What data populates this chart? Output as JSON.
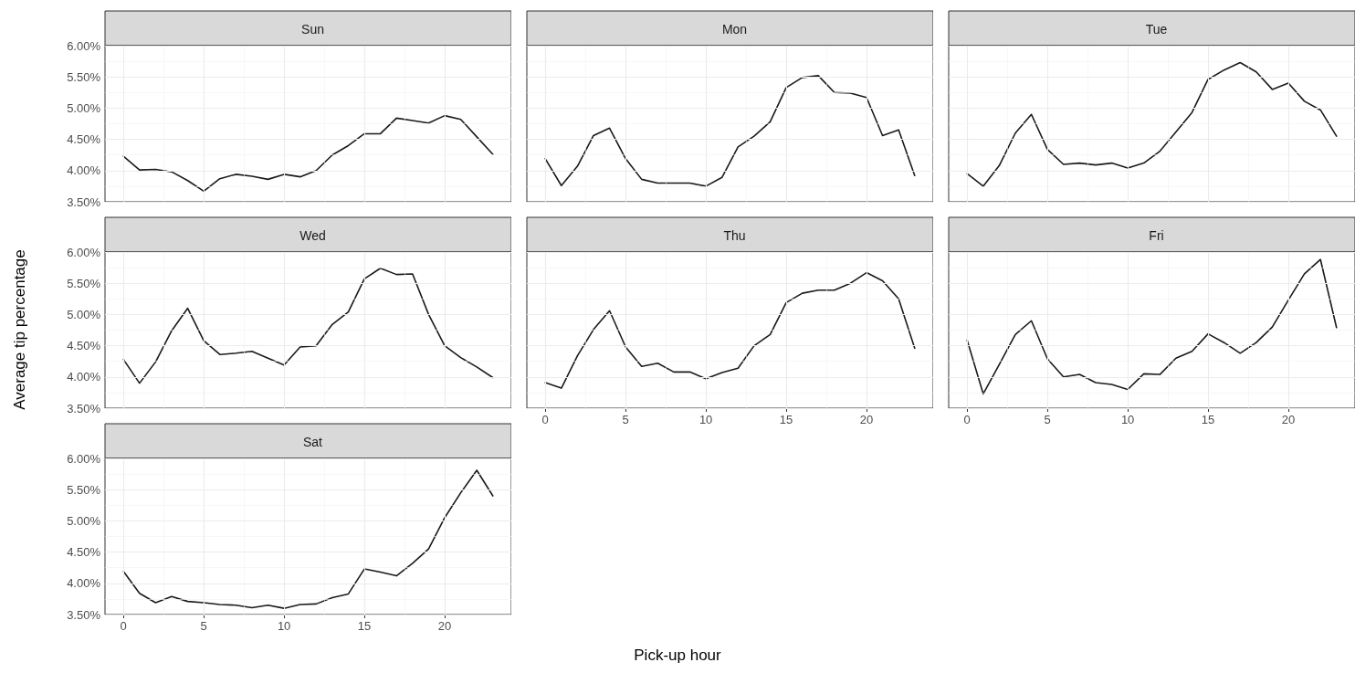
{
  "chart_data": [
    {
      "type": "line",
      "title": "Sun",
      "tick_labels": "y",
      "grid": true,
      "marker": "none",
      "line_style": "solid",
      "xlim": [
        -1.15,
        24.15
      ],
      "xticks": [
        0,
        5,
        10,
        15,
        20
      ],
      "ylim": [
        3.5,
        6.0
      ],
      "yticks": [
        {
          "value": 3.5,
          "label": "3.50%"
        },
        {
          "value": 4.0,
          "label": "4.00%"
        },
        {
          "value": 4.5,
          "label": "4.50%"
        },
        {
          "value": 5.0,
          "label": "5.00%"
        },
        {
          "value": 5.5,
          "label": "5.50%"
        },
        {
          "value": 6.0,
          "label": "6.00%"
        }
      ],
      "x": [
        0,
        1,
        2,
        3,
        4,
        5,
        6,
        7,
        8,
        9,
        10,
        11,
        12,
        13,
        14,
        15,
        16,
        17,
        18,
        19,
        20,
        21,
        22,
        23
      ],
      "series": [
        {
          "color": "#1a1a1a",
          "values": [
            4.23,
            4.01,
            4.02,
            3.98,
            3.84,
            3.67,
            3.87,
            3.94,
            3.91,
            3.86,
            3.94,
            3.9,
            4.0,
            4.25,
            4.4,
            4.59,
            4.59,
            4.84,
            4.8,
            4.76,
            4.88,
            4.82,
            4.54,
            4.26
          ]
        }
      ]
    },
    {
      "type": "line",
      "title": "Mon",
      "tick_labels": false,
      "grid": true,
      "marker": "none",
      "line_style": "solid",
      "xlim": [
        -1.15,
        24.15
      ],
      "xticks": [
        0,
        5,
        10,
        15,
        20
      ],
      "ylim": [
        3.5,
        6.0
      ],
      "yticks": [
        3.5,
        4.0,
        4.5,
        5.0,
        5.5,
        6.0
      ],
      "x": [
        0,
        1,
        2,
        3,
        4,
        5,
        6,
        7,
        8,
        9,
        10,
        11,
        12,
        13,
        14,
        15,
        16,
        17,
        18,
        19,
        20,
        21,
        22,
        23
      ],
      "series": [
        {
          "color": "#1a1a1a",
          "values": [
            4.19,
            3.76,
            4.07,
            4.56,
            4.68,
            4.19,
            3.86,
            3.8,
            3.8,
            3.8,
            3.75,
            3.89,
            4.38,
            4.55,
            4.78,
            5.33,
            5.49,
            5.52,
            5.25,
            5.24,
            5.17,
            4.56,
            4.65,
            3.92
          ]
        }
      ]
    },
    {
      "type": "line",
      "title": "Tue",
      "tick_labels": false,
      "grid": true,
      "marker": "none",
      "line_style": "solid",
      "xlim": [
        -1.15,
        24.15
      ],
      "xticks": [
        0,
        5,
        10,
        15,
        20
      ],
      "ylim": [
        3.5,
        6.0
      ],
      "yticks": [
        3.5,
        4.0,
        4.5,
        5.0,
        5.5,
        6.0
      ],
      "x": [
        0,
        1,
        2,
        3,
        4,
        5,
        6,
        7,
        8,
        9,
        10,
        11,
        12,
        13,
        14,
        15,
        16,
        17,
        18,
        19,
        20,
        21,
        22,
        23
      ],
      "series": [
        {
          "color": "#1a1a1a",
          "values": [
            3.95,
            3.75,
            4.08,
            4.6,
            4.9,
            4.34,
            4.1,
            4.12,
            4.09,
            4.12,
            4.04,
            4.12,
            4.31,
            4.62,
            4.93,
            5.46,
            5.61,
            5.73,
            5.58,
            5.3,
            5.4,
            5.11,
            4.97,
            4.55
          ]
        }
      ]
    },
    {
      "type": "line",
      "title": "Wed",
      "ylabel": "Average tip percentage",
      "tick_labels": "y",
      "grid": true,
      "marker": "none",
      "line_style": "solid",
      "xlim": [
        -1.15,
        24.15
      ],
      "xticks": [
        0,
        5,
        10,
        15,
        20
      ],
      "ylim": [
        3.5,
        6.0
      ],
      "yticks": [
        {
          "value": 3.5,
          "label": "3.50%"
        },
        {
          "value": 4.0,
          "label": "4.00%"
        },
        {
          "value": 4.5,
          "label": "4.50%"
        },
        {
          "value": 5.0,
          "label": "5.00%"
        },
        {
          "value": 5.5,
          "label": "5.50%"
        },
        {
          "value": 6.0,
          "label": "6.00%"
        }
      ],
      "x": [
        0,
        1,
        2,
        3,
        4,
        5,
        6,
        7,
        8,
        9,
        10,
        11,
        12,
        13,
        14,
        15,
        16,
        17,
        18,
        19,
        20,
        21,
        22,
        23
      ],
      "series": [
        {
          "color": "#1a1a1a",
          "values": [
            4.28,
            3.9,
            4.24,
            4.74,
            5.1,
            4.58,
            4.36,
            4.38,
            4.41,
            4.3,
            4.19,
            4.48,
            4.5,
            4.84,
            5.04,
            5.57,
            5.74,
            5.64,
            5.65,
            5.0,
            4.5,
            4.31,
            4.16,
            3.99
          ]
        }
      ]
    },
    {
      "type": "line",
      "title": "Thu",
      "xlabel": "Pick-up hour",
      "tick_labels": "x",
      "grid": true,
      "marker": "none",
      "line_style": "solid",
      "xlim": [
        -1.15,
        24.15
      ],
      "xticks": [
        0,
        5,
        10,
        15,
        20
      ],
      "ylim": [
        3.5,
        6.0
      ],
      "yticks": [
        3.5,
        4.0,
        4.5,
        5.0,
        5.5,
        6.0
      ],
      "x": [
        0,
        1,
        2,
        3,
        4,
        5,
        6,
        7,
        8,
        9,
        10,
        11,
        12,
        13,
        14,
        15,
        16,
        17,
        18,
        19,
        20,
        21,
        22,
        23
      ],
      "series": [
        {
          "color": "#1a1a1a",
          "values": [
            3.91,
            3.82,
            4.34,
            4.76,
            5.06,
            4.48,
            4.17,
            4.22,
            4.08,
            4.08,
            3.97,
            4.07,
            4.14,
            4.5,
            4.68,
            5.19,
            5.34,
            5.39,
            5.39,
            5.5,
            5.67,
            5.54,
            5.25,
            4.46
          ]
        }
      ]
    },
    {
      "type": "line",
      "title": "Fri",
      "tick_labels": "x",
      "grid": true,
      "marker": "none",
      "line_style": "solid",
      "xlim": [
        -1.15,
        24.15
      ],
      "xticks": [
        0,
        5,
        10,
        15,
        20
      ],
      "ylim": [
        3.5,
        6.0
      ],
      "yticks": [
        3.5,
        4.0,
        4.5,
        5.0,
        5.5,
        6.0
      ],
      "x": [
        0,
        1,
        2,
        3,
        4,
        5,
        6,
        7,
        8,
        9,
        10,
        11,
        12,
        13,
        14,
        15,
        16,
        17,
        18,
        19,
        20,
        21,
        22,
        23
      ],
      "series": [
        {
          "color": "#1a1a1a",
          "values": [
            4.59,
            3.73,
            4.2,
            4.68,
            4.9,
            4.29,
            4.0,
            4.04,
            3.91,
            3.88,
            3.8,
            4.05,
            4.04,
            4.3,
            4.41,
            4.69,
            4.55,
            4.38,
            4.55,
            4.8,
            5.23,
            5.65,
            5.88,
            4.79
          ]
        }
      ]
    },
    {
      "type": "line",
      "title": "Sat",
      "grid": true,
      "marker": "none",
      "line_style": "solid",
      "xlim": [
        -1.15,
        24.15
      ],
      "xticks": [
        0,
        5,
        10,
        15,
        20
      ],
      "ylim": [
        3.5,
        6.0
      ],
      "yticks": [
        {
          "value": 3.5,
          "label": "3.50%"
        },
        {
          "value": 4.0,
          "label": "4.00%"
        },
        {
          "value": 4.5,
          "label": "4.50%"
        },
        {
          "value": 5.0,
          "label": "5.00%"
        },
        {
          "value": 5.5,
          "label": "5.50%"
        },
        {
          "value": 6.0,
          "label": "6.00%"
        }
      ],
      "x": [
        0,
        1,
        2,
        3,
        4,
        5,
        6,
        7,
        8,
        9,
        10,
        11,
        12,
        13,
        14,
        15,
        16,
        17,
        18,
        19,
        20,
        21,
        22,
        23
      ],
      "series": [
        {
          "color": "#1a1a1a",
          "values": [
            4.19,
            3.84,
            3.69,
            3.79,
            3.71,
            3.69,
            3.66,
            3.65,
            3.61,
            3.65,
            3.6,
            3.66,
            3.67,
            3.77,
            3.83,
            4.23,
            4.18,
            4.12,
            4.32,
            4.55,
            5.05,
            5.45,
            5.81,
            5.4
          ]
        }
      ]
    }
  ]
}
